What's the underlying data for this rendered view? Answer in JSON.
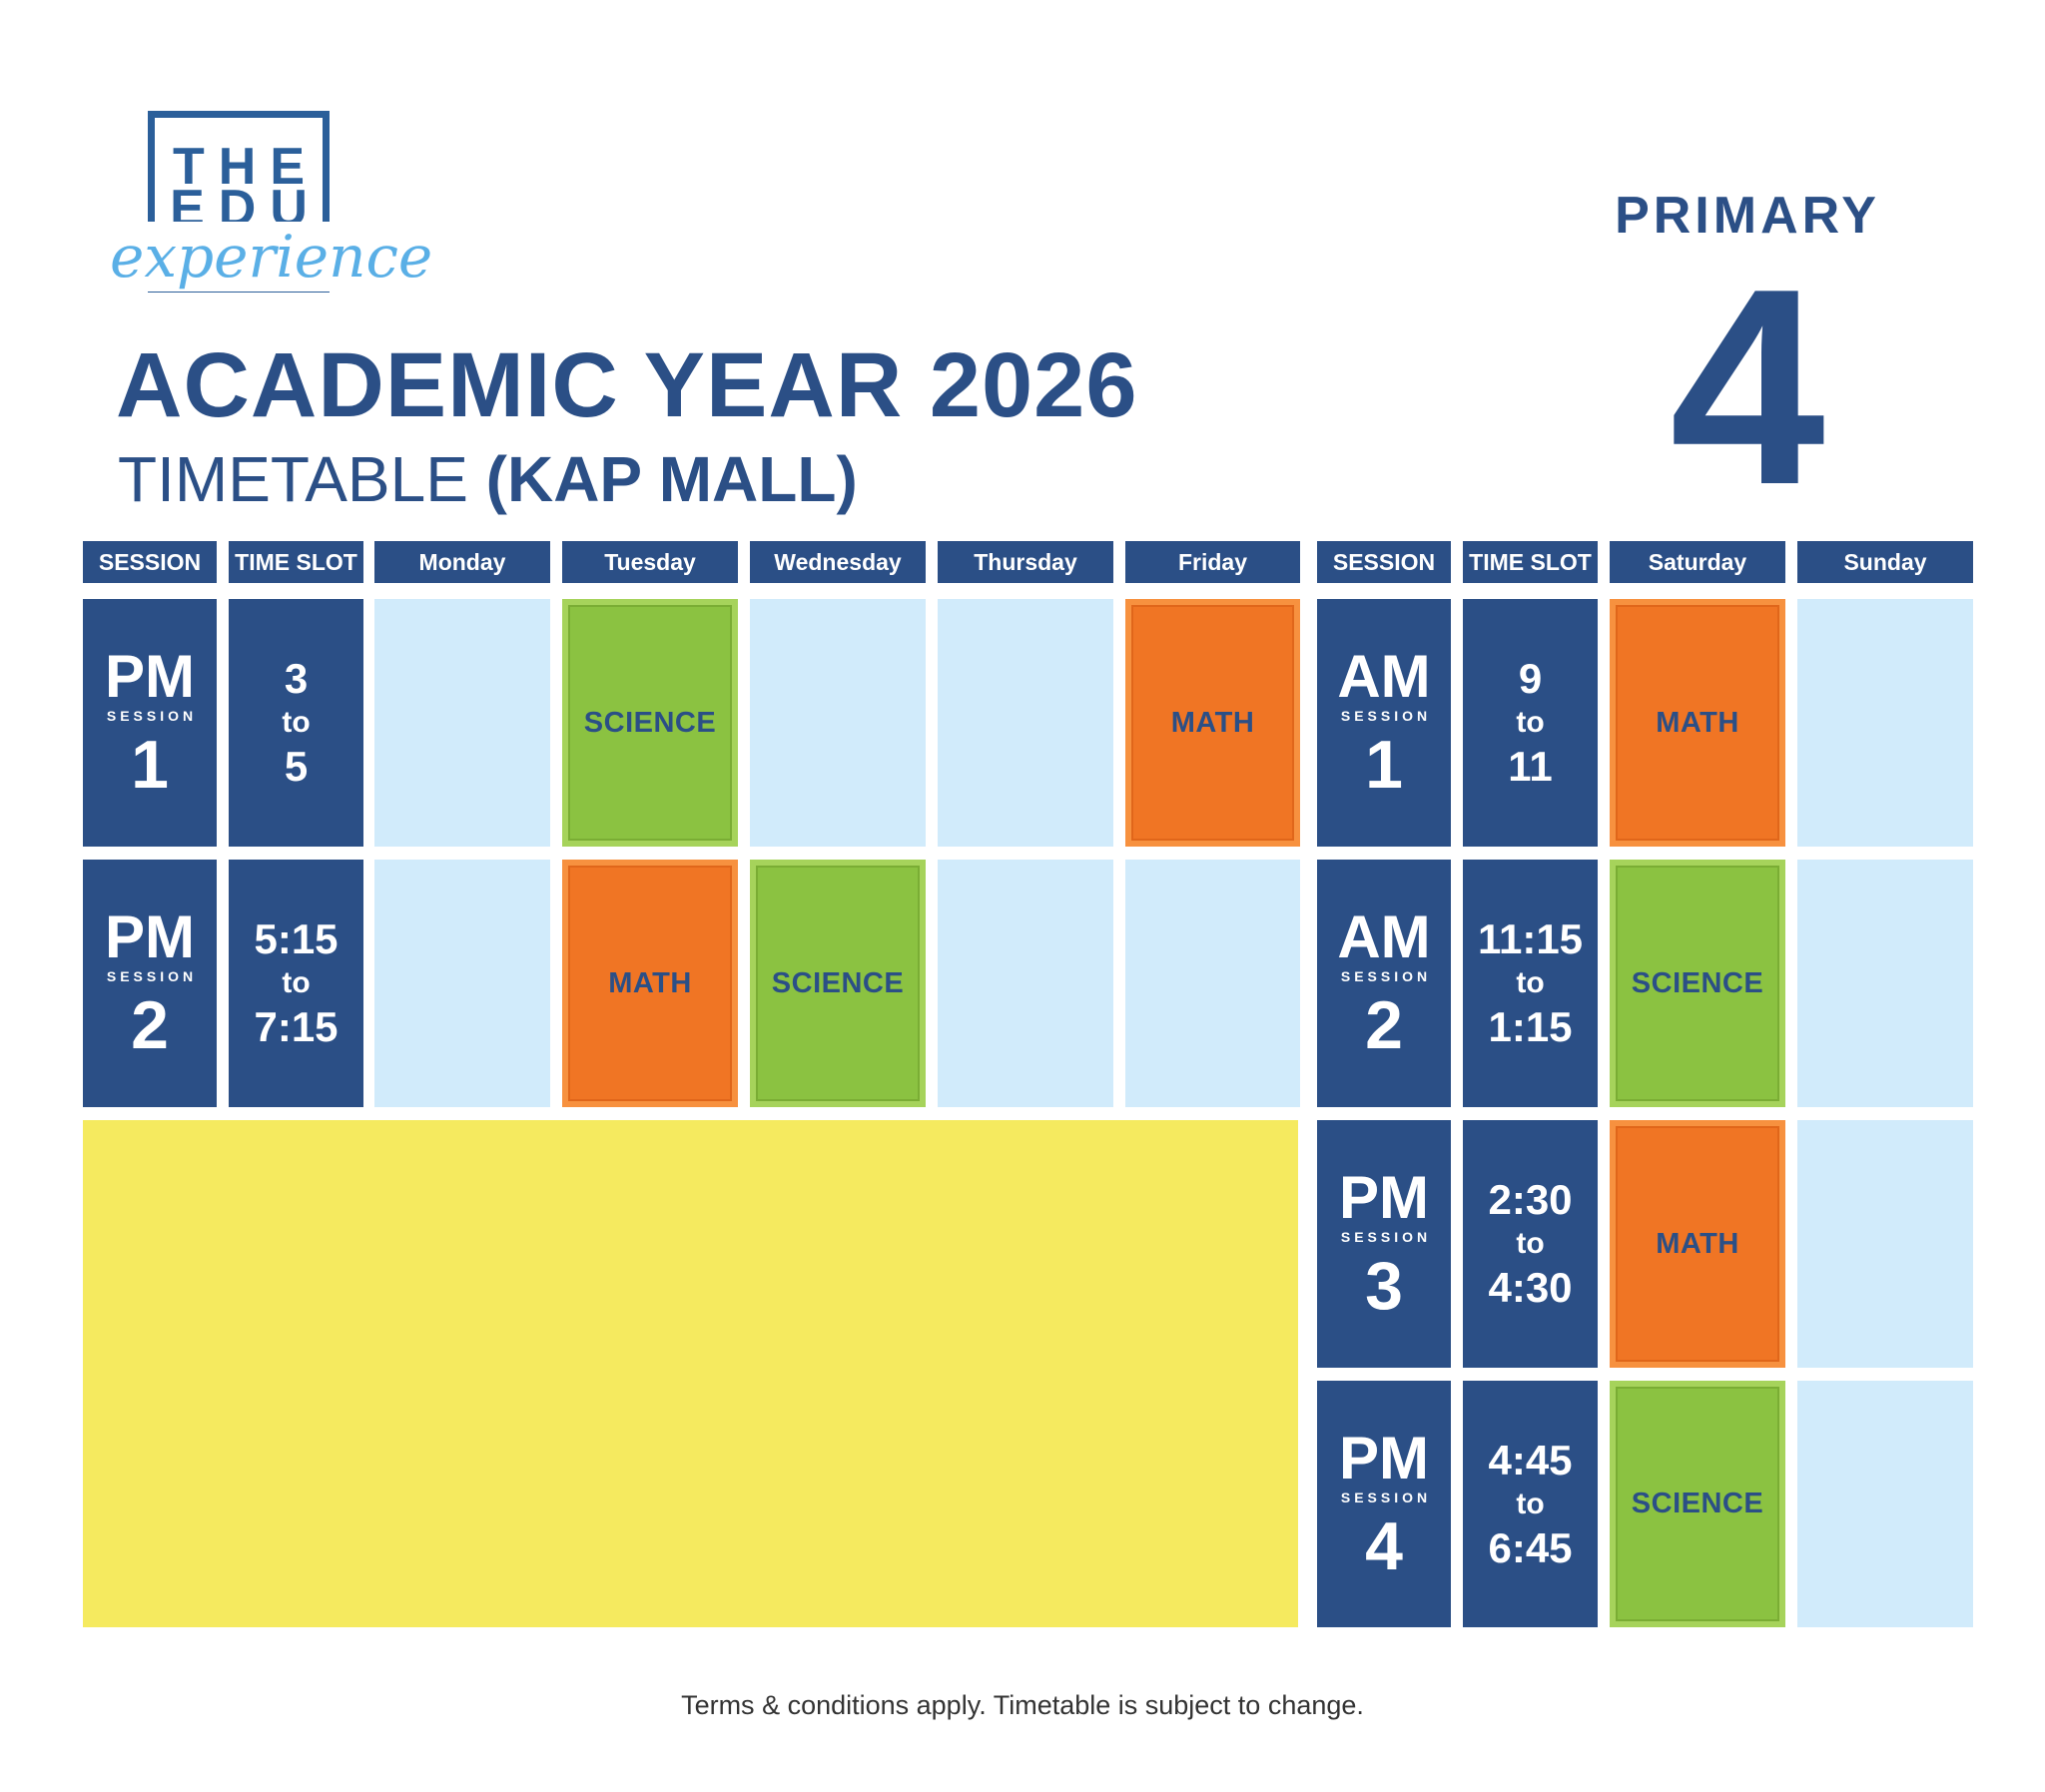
{
  "logo": {
    "line1": "THE",
    "line2": "EDU",
    "line3": "experience"
  },
  "header": {
    "title": "ACADEMIC YEAR 2026",
    "subtitle_part1": "TIMETABLE ",
    "subtitle_part2": "(KAP MALL)",
    "primary_label": "PRIMARY",
    "primary_number": "4"
  },
  "columns": {
    "session": "SESSION",
    "time_slot": "TIME SLOT",
    "monday": "Monday",
    "tuesday": "Tuesday",
    "wednesday": "Wednesday",
    "thursday": "Thursday",
    "friday": "Friday",
    "saturday": "Saturday",
    "sunday": "Sunday"
  },
  "weekday_sessions": [
    {
      "period": "PM",
      "label": "SESSION",
      "number": "1",
      "start": "3",
      "to": "to",
      "end": "5",
      "tuesday": "SCIENCE",
      "wednesday": "",
      "friday": "MATH"
    },
    {
      "period": "PM",
      "label": "SESSION",
      "number": "2",
      "start": "5:15",
      "to": "to",
      "end": "7:15",
      "tuesday": "MATH",
      "wednesday": "SCIENCE",
      "friday": ""
    }
  ],
  "weekend_sessions": [
    {
      "period": "AM",
      "label": "SESSION",
      "number": "1",
      "start": "9",
      "to": "to",
      "end": "11",
      "saturday": "MATH"
    },
    {
      "period": "AM",
      "label": "SESSION",
      "number": "2",
      "start": "11:15",
      "to": "to",
      "end": "1:15",
      "saturday": "SCIENCE"
    },
    {
      "period": "PM",
      "label": "SESSION",
      "number": "3",
      "start": "2:30",
      "to": "to",
      "end": "4:30",
      "saturday": "MATH"
    },
    {
      "period": "PM",
      "label": "SESSION",
      "number": "4",
      "start": "4:45",
      "to": "to",
      "end": "6:45",
      "saturday": "SCIENCE"
    }
  ],
  "colors": {
    "navy": "#2b4f86",
    "light_blue": "#d1ebfb",
    "science_green": "#8bc241",
    "math_orange": "#f07524",
    "yellow": "#f5ea5f"
  },
  "footer": {
    "note": "Terms & conditions apply. Timetable is subject to change."
  }
}
